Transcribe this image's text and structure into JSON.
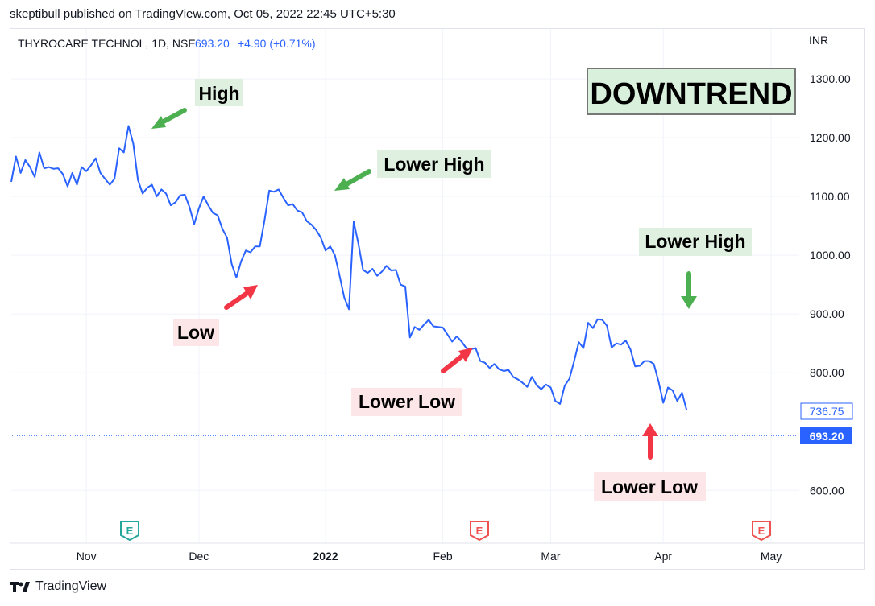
{
  "header": {
    "publisher_line": "skeptibull published on TradingView.com, Oct 05, 2022 22:45 UTC+5:30"
  },
  "footer": {
    "brand": "TradingView"
  },
  "colors": {
    "line": "#2962ff",
    "green": "#4caf50",
    "red": "#f23645",
    "green_bg": "#dff0e0",
    "red_bg": "#fde6e8",
    "grid": "#f0f3fa",
    "axis_text": "#131722"
  },
  "chart_data": {
    "type": "line",
    "symbol": "THYROCARE TECHNOL, 1D, NSE",
    "last_price": "693.20",
    "change": "+4.90 (+0.71%)",
    "currency": "INR",
    "ylim": [
      510,
      1385
    ],
    "y_ticks": [
      {
        "value": 1300,
        "label": "1300.00"
      },
      {
        "value": 1200,
        "label": "1200.00"
      },
      {
        "value": 1100,
        "label": "1100.00"
      },
      {
        "value": 1000,
        "label": "1000.00"
      },
      {
        "value": 900,
        "label": "900.00"
      },
      {
        "value": 800,
        "label": "800.00"
      },
      {
        "value": 600,
        "label": "600.00"
      }
    ],
    "x_ticks": [
      {
        "label": "Nov",
        "index": 16,
        "bold": false
      },
      {
        "label": "Dec",
        "index": 40,
        "bold": false
      },
      {
        "label": "2022",
        "index": 67,
        "bold": true
      },
      {
        "label": "Feb",
        "index": 92,
        "bold": false
      },
      {
        "label": "Mar",
        "index": 115,
        "bold": false
      },
      {
        "label": "Apr",
        "index": 139,
        "bold": false
      },
      {
        "label": "May",
        "index": 162,
        "bold": false
      }
    ],
    "index_range": [
      0,
      168
    ],
    "price_tags": [
      {
        "value": 736.75,
        "label": "736.75",
        "style": "outline"
      },
      {
        "value": 693.2,
        "label": "693.20",
        "style": "filled"
      }
    ],
    "current_price_line": 693.2,
    "series": [
      {
        "name": "THYROCARE TECHNOL",
        "points": [
          [
            0,
            1125
          ],
          [
            1,
            1168
          ],
          [
            2,
            1140
          ],
          [
            3,
            1162
          ],
          [
            4,
            1150
          ],
          [
            5,
            1133
          ],
          [
            6,
            1175
          ],
          [
            7,
            1148
          ],
          [
            8,
            1150
          ],
          [
            9,
            1147
          ],
          [
            10,
            1148
          ],
          [
            11,
            1138
          ],
          [
            12,
            1117
          ],
          [
            13,
            1140
          ],
          [
            14,
            1120
          ],
          [
            15,
            1150
          ],
          [
            16,
            1143
          ],
          [
            17,
            1153
          ],
          [
            18,
            1165
          ],
          [
            19,
            1140
          ],
          [
            20,
            1130
          ],
          [
            21,
            1120
          ],
          [
            22,
            1130
          ],
          [
            23,
            1182
          ],
          [
            24,
            1175
          ],
          [
            25,
            1220
          ],
          [
            26,
            1190
          ],
          [
            27,
            1128
          ],
          [
            28,
            1105
          ],
          [
            29,
            1115
          ],
          [
            30,
            1120
          ],
          [
            31,
            1100
          ],
          [
            32,
            1112
          ],
          [
            33,
            1105
          ],
          [
            34,
            1085
          ],
          [
            35,
            1090
          ],
          [
            36,
            1102
          ],
          [
            37,
            1103
          ],
          [
            38,
            1082
          ],
          [
            39,
            1053
          ],
          [
            40,
            1080
          ],
          [
            41,
            1100
          ],
          [
            42,
            1085
          ],
          [
            43,
            1072
          ],
          [
            44,
            1068
          ],
          [
            45,
            1045
          ],
          [
            46,
            1030
          ],
          [
            47,
            985
          ],
          [
            48,
            962
          ],
          [
            49,
            990
          ],
          [
            50,
            1008
          ],
          [
            51,
            1005
          ],
          [
            52,
            1015
          ],
          [
            53,
            1015
          ],
          [
            54,
            1060
          ],
          [
            55,
            1110
          ],
          [
            56,
            1108
          ],
          [
            57,
            1112
          ],
          [
            58,
            1098
          ],
          [
            59,
            1085
          ],
          [
            60,
            1087
          ],
          [
            61,
            1076
          ],
          [
            62,
            1073
          ],
          [
            63,
            1058
          ],
          [
            64,
            1052
          ],
          [
            65,
            1043
          ],
          [
            66,
            1030
          ],
          [
            67,
            1008
          ],
          [
            68,
            1015
          ],
          [
            69,
            1000
          ],
          [
            70,
            965
          ],
          [
            71,
            928
          ],
          [
            72,
            908
          ],
          [
            73,
            1057
          ],
          [
            74,
            1020
          ],
          [
            75,
            975
          ],
          [
            76,
            970
          ],
          [
            77,
            977
          ],
          [
            78,
            965
          ],
          [
            79,
            972
          ],
          [
            80,
            982
          ],
          [
            81,
            974
          ],
          [
            82,
            975
          ],
          [
            83,
            950
          ],
          [
            84,
            947
          ],
          [
            85,
            860
          ],
          [
            86,
            878
          ],
          [
            87,
            873
          ],
          [
            88,
            882
          ],
          [
            89,
            890
          ],
          [
            90,
            879
          ],
          [
            91,
            878
          ],
          [
            92,
            877
          ],
          [
            93,
            865
          ],
          [
            94,
            853
          ],
          [
            95,
            862
          ],
          [
            96,
            853
          ],
          [
            97,
            842
          ],
          [
            98,
            840
          ],
          [
            99,
            842
          ],
          [
            100,
            820
          ],
          [
            101,
            817
          ],
          [
            102,
            808
          ],
          [
            103,
            815
          ],
          [
            104,
            806
          ],
          [
            105,
            803
          ],
          [
            106,
            805
          ],
          [
            107,
            793
          ],
          [
            108,
            789
          ],
          [
            109,
            783
          ],
          [
            110,
            776
          ],
          [
            111,
            793
          ],
          [
            112,
            779
          ],
          [
            113,
            772
          ],
          [
            114,
            780
          ],
          [
            115,
            775
          ],
          [
            116,
            752
          ],
          [
            117,
            747
          ],
          [
            118,
            778
          ],
          [
            119,
            790
          ],
          [
            120,
            820
          ],
          [
            121,
            852
          ],
          [
            122,
            842
          ],
          [
            123,
            885
          ],
          [
            124,
            876
          ],
          [
            125,
            891
          ],
          [
            126,
            890
          ],
          [
            127,
            880
          ],
          [
            128,
            843
          ],
          [
            129,
            850
          ],
          [
            130,
            848
          ],
          [
            131,
            855
          ],
          [
            132,
            840
          ],
          [
            133,
            811
          ],
          [
            134,
            812
          ],
          [
            135,
            820
          ],
          [
            136,
            820
          ],
          [
            137,
            815
          ],
          [
            138,
            785
          ],
          [
            139,
            749
          ],
          [
            140,
            775
          ],
          [
            141,
            770
          ],
          [
            142,
            752
          ],
          [
            143,
            766
          ],
          [
            144,
            736
          ]
        ]
      }
    ],
    "annotations": [
      {
        "text": "High",
        "kind": "green"
      },
      {
        "text": "Lower High",
        "kind": "green"
      },
      {
        "text": "Lower High",
        "kind": "green"
      },
      {
        "text": "Low",
        "kind": "red"
      },
      {
        "text": "Lower Low",
        "kind": "red"
      },
      {
        "text": "Lower Low",
        "kind": "red"
      }
    ],
    "title_box": "DOWNTREND",
    "earnings_markers": [
      {
        "label": "E",
        "kind": "green"
      },
      {
        "label": "E",
        "kind": "red"
      },
      {
        "label": "E",
        "kind": "red"
      }
    ]
  }
}
